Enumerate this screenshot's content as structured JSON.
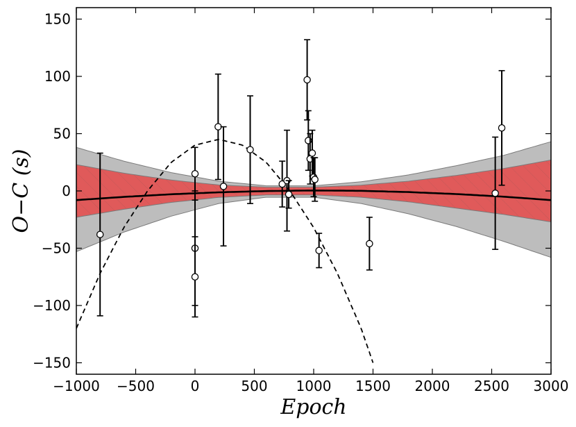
{
  "chart_data": {
    "type": "scatter",
    "title": "",
    "xlabel": "Epoch",
    "ylabel": "O−C (s)",
    "xlim": [
      -1000,
      3000
    ],
    "ylim": [
      -160,
      160
    ],
    "xticks": [
      -1000,
      -500,
      0,
      500,
      1000,
      1500,
      2000,
      2500,
      3000
    ],
    "xtick_labels": [
      "−1000",
      "−500",
      "0",
      "500",
      "1000",
      "1500",
      "2000",
      "2500",
      "3000"
    ],
    "yticks": [
      -150,
      -100,
      -50,
      0,
      50,
      100,
      150
    ],
    "ytick_labels": [
      "−150",
      "−100",
      "−50",
      "0",
      "50",
      "100",
      "150"
    ],
    "grid": false,
    "colors": {
      "band_outer": "#bdbdbd",
      "band_inner": "#e05a5a",
      "band_edge": "#7a7a7a",
      "hatch": "#c25555",
      "fit_line": "#000000",
      "dashed_curve": "#000000",
      "marker_face": "#ffffff",
      "marker_edge": "#000000"
    },
    "points": [
      {
        "x": -800,
        "y": -38,
        "err": 71
      },
      {
        "x": 0,
        "y": 15,
        "err": 23
      },
      {
        "x": 0,
        "y": -50,
        "err": 50
      },
      {
        "x": 0,
        "y": -75,
        "err": 35
      },
      {
        "x": 195,
        "y": 56,
        "err": 46
      },
      {
        "x": 240,
        "y": 4,
        "err": 52
      },
      {
        "x": 465,
        "y": 36,
        "err": 47
      },
      {
        "x": 735,
        "y": 6,
        "err": 20
      },
      {
        "x": 775,
        "y": 9,
        "err": 44
      },
      {
        "x": 790,
        "y": -3,
        "err": 12
      },
      {
        "x": 945,
        "y": 97,
        "err": 35
      },
      {
        "x": 955,
        "y": 44,
        "err": 26
      },
      {
        "x": 970,
        "y": 28,
        "err": 22
      },
      {
        "x": 988,
        "y": 33,
        "err": 20
      },
      {
        "x": 1000,
        "y": 12,
        "err": 17
      },
      {
        "x": 1010,
        "y": 10,
        "err": 19
      },
      {
        "x": 1045,
        "y": -52,
        "err": 15
      },
      {
        "x": 1470,
        "y": -46,
        "err": 23
      },
      {
        "x": 2530,
        "y": -2,
        "err": 49
      },
      {
        "x": 2585,
        "y": 55,
        "err": 50
      }
    ],
    "series": [
      {
        "kind": "line",
        "style": "solid",
        "x": [
          -1000,
          -600,
          -200,
          200,
          600,
          1000,
          1400,
          1800,
          2200,
          2600,
          3000
        ],
        "y": [
          -8,
          -5.2,
          -2.9,
          -1.2,
          -0.1,
          0.4,
          0.1,
          -1.0,
          -2.7,
          -5.0,
          -8
        ]
      },
      {
        "kind": "line",
        "style": "dashed",
        "x": [
          -1000,
          -800,
          -600,
          -400,
          -200,
          0,
          200,
          400,
          600,
          800,
          1000,
          1200,
          1400,
          1500
        ],
        "y": [
          -120,
          -72,
          -32,
          0,
          25,
          40,
          45,
          40,
          25,
          0,
          -32,
          -72,
          -120,
          -150
        ]
      },
      {
        "kind": "band",
        "name_hint": "outer",
        "x": [
          -1000,
          -600,
          -200,
          200,
          600,
          1000,
          1400,
          1800,
          2200,
          2600,
          3000
        ],
        "upper": [
          38,
          26,
          16,
          8.5,
          4.5,
          4.5,
          8,
          14,
          22,
          31,
          43
        ],
        "lower": [
          -53,
          -36,
          -22,
          -11,
          -5.5,
          -5.5,
          -11,
          -20,
          -31,
          -44,
          -58
        ]
      },
      {
        "kind": "band",
        "name_hint": "inner",
        "x": [
          -1000,
          -600,
          -200,
          200,
          600,
          1000,
          1400,
          1800,
          2200,
          2600,
          3000
        ],
        "upper": [
          23,
          15.5,
          9.5,
          5.2,
          3.3,
          3.3,
          5,
          8.5,
          13.5,
          19.5,
          27
        ],
        "lower": [
          -23,
          -16,
          -10,
          -5.6,
          -3.5,
          -3.5,
          -5.5,
          -9.5,
          -15,
          -20.5,
          -27
        ]
      }
    ]
  }
}
